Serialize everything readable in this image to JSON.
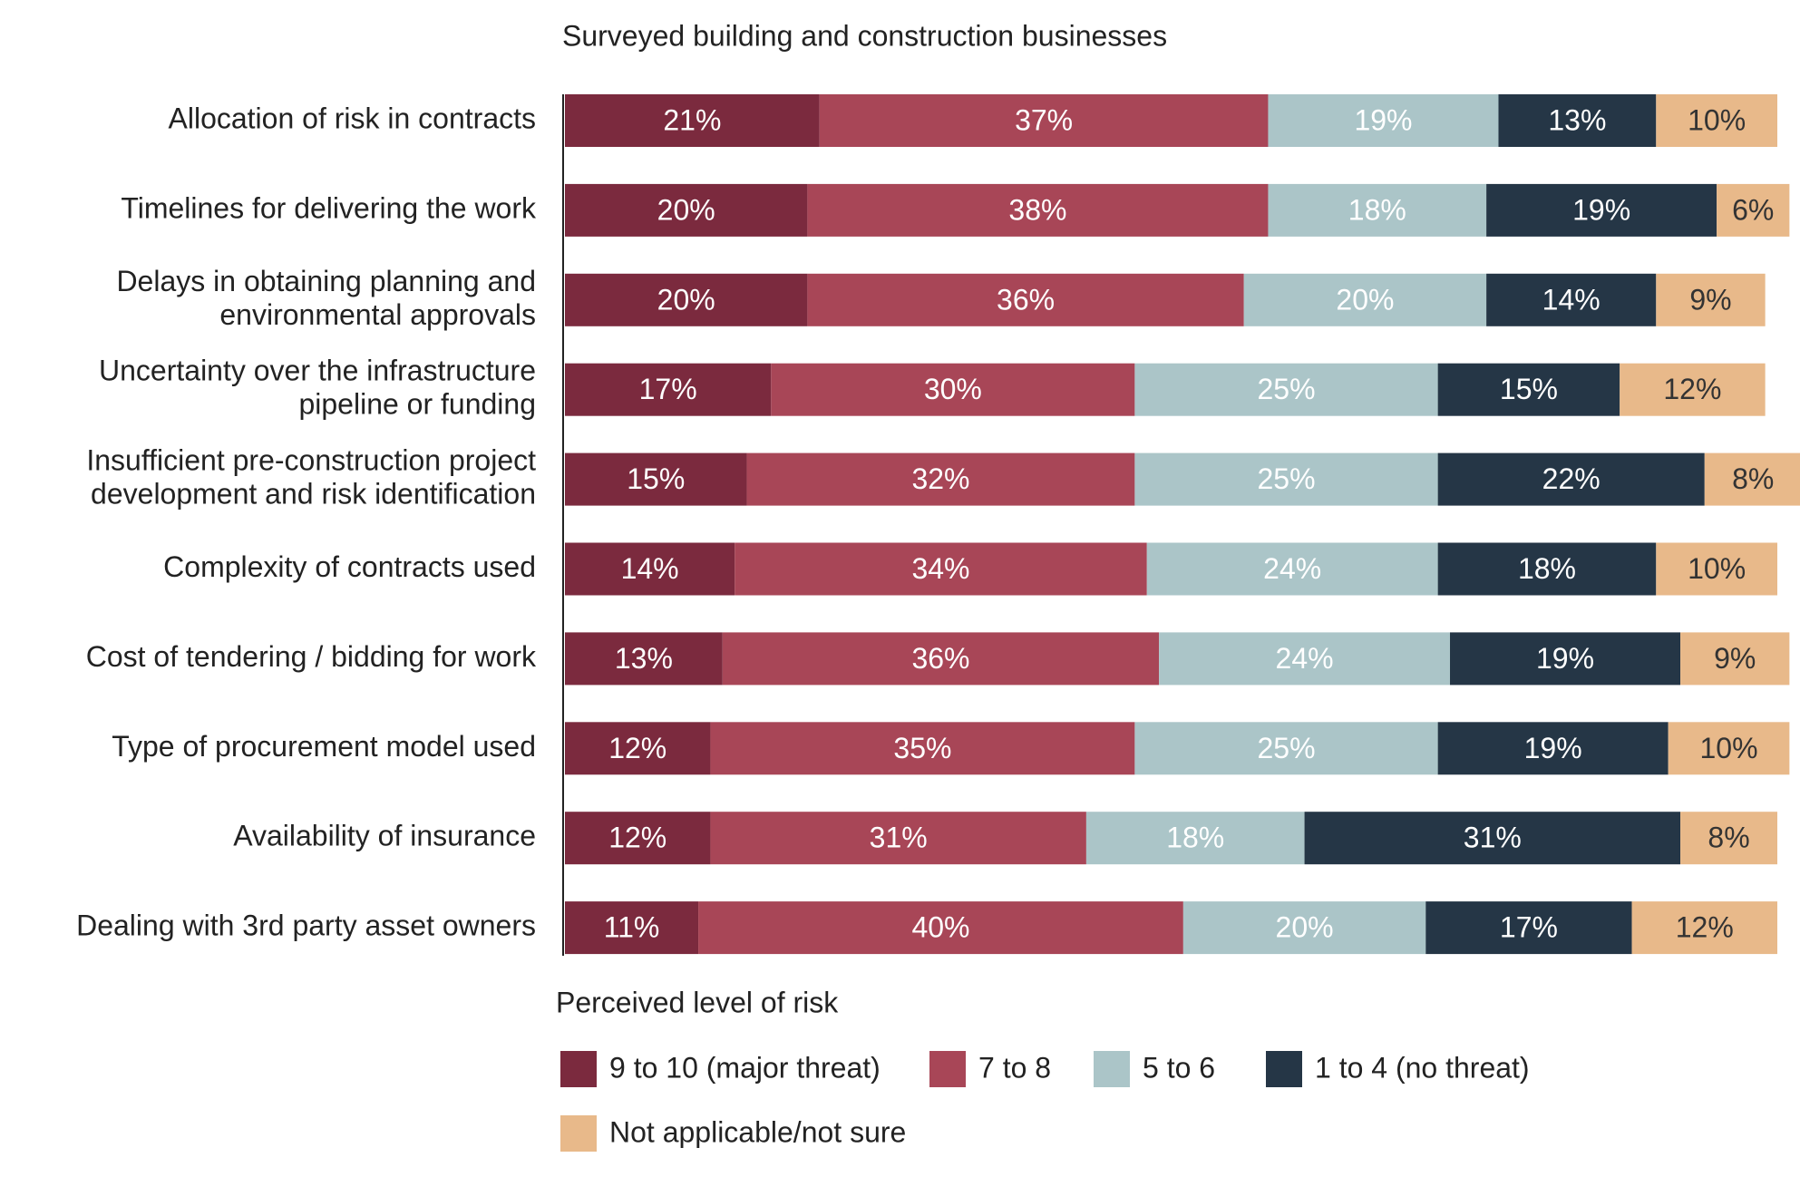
{
  "chart_data": {
    "type": "stacked-bar-horizontal",
    "title": "Surveyed building and construction businesses",
    "legend_title": "Perceived level of risk",
    "categories": [
      [
        "Allocation of risk in contracts"
      ],
      [
        "Timelines for delivering the work"
      ],
      [
        "Delays in obtaining planning and",
        "environmental approvals"
      ],
      [
        "Uncertainty over the infrastructure",
        "pipeline or funding"
      ],
      [
        "Insufficient pre-construction project",
        "development and risk identification"
      ],
      [
        "Complexity of contracts used"
      ],
      [
        "Cost of tendering / bidding for work"
      ],
      [
        "Type of procurement model used"
      ],
      [
        "Availability of insurance"
      ],
      [
        "Dealing with 3rd party asset owners"
      ]
    ],
    "xlim": [
      0,
      100
    ],
    "series": [
      {
        "name": "9 to 10 (major threat)",
        "color": "#7b2a3e",
        "values": [
          21,
          20,
          20,
          17,
          15,
          14,
          13,
          12,
          12,
          11
        ],
        "value_labels": [
          "21%",
          "20%",
          "20%",
          "17%",
          "15%",
          "14%",
          "13%",
          "12%",
          "12%",
          "11%"
        ]
      },
      {
        "name": "7 to 8",
        "color": "#a84657",
        "values": [
          37,
          38,
          36,
          30,
          32,
          34,
          36,
          35,
          31,
          40
        ],
        "value_labels": [
          "37%",
          "38%",
          "36%",
          "30%",
          "32%",
          "34%",
          "36%",
          "35%",
          "31%",
          "40%"
        ]
      },
      {
        "name": "5 to 6",
        "color": "#abc5c8",
        "values": [
          19,
          18,
          20,
          25,
          25,
          24,
          24,
          25,
          18,
          20
        ],
        "value_labels": [
          "19%",
          "18%",
          "20%",
          "25%",
          "25%",
          "24%",
          "24%",
          "25%",
          "18%",
          "20%"
        ]
      },
      {
        "name": "1 to 4 (no threat)",
        "color": "#253646",
        "values": [
          13,
          19,
          14,
          15,
          22,
          18,
          19,
          19,
          31,
          17
        ],
        "value_labels": [
          "13%",
          "19%",
          "14%",
          "15%",
          "22%",
          "18%",
          "19%",
          "19%",
          "31%",
          "17%"
        ]
      },
      {
        "name": "Not applicable/not sure",
        "color": "#e8b98a",
        "values": [
          10,
          6,
          9,
          12,
          8,
          10,
          9,
          10,
          8,
          12
        ],
        "value_labels": [
          "10%",
          "6%",
          "9%",
          "12%",
          "8%",
          "10%",
          "9%",
          "10%",
          "8%",
          "12%"
        ]
      }
    ]
  }
}
